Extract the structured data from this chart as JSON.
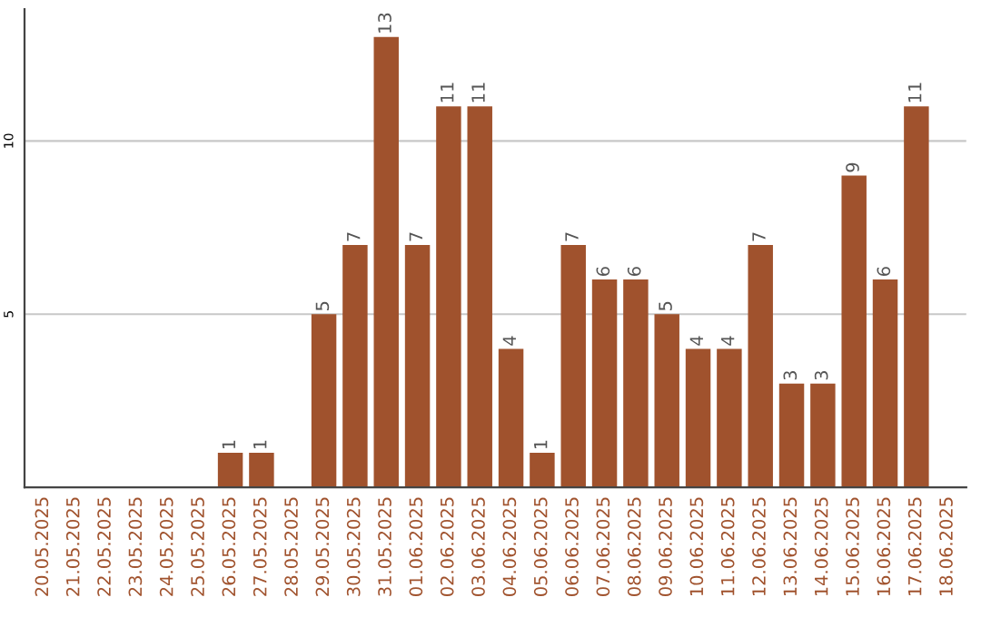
{
  "chart_data": {
    "type": "bar",
    "categories": [
      "20.05.2025",
      "21.05.2025",
      "22.05.2025",
      "23.05.2025",
      "24.05.2025",
      "25.05.2025",
      "26.05.2025",
      "27.05.2025",
      "28.05.2025",
      "29.05.2025",
      "30.05.2025",
      "31.05.2025",
      "01.06.2025",
      "02.06.2025",
      "03.06.2025",
      "04.06.2025",
      "05.06.2025",
      "06.06.2025",
      "07.06.2025",
      "08.06.2025",
      "09.06.2025",
      "10.06.2025",
      "11.06.2025",
      "12.06.2025",
      "13.06.2025",
      "14.06.2025",
      "15.06.2025",
      "16.06.2025",
      "17.06.2025",
      "18.06.2025"
    ],
    "values": [
      0,
      0,
      0,
      0,
      0,
      0,
      1,
      1,
      0,
      5,
      7,
      13,
      7,
      11,
      11,
      4,
      1,
      7,
      6,
      6,
      5,
      4,
      4,
      7,
      3,
      3,
      9,
      6,
      11,
      0
    ],
    "value_labels": [
      null,
      null,
      null,
      null,
      null,
      null,
      "1",
      "1",
      null,
      "5",
      "7",
      "13",
      "7",
      "11",
      "11",
      "4",
      "1",
      "7",
      "6",
      "6",
      "5",
      "4",
      "4",
      "7",
      "3",
      "3",
      "9",
      "6",
      "11",
      null
    ],
    "color": "#a0522d",
    "ylim": [
      0,
      13.8
    ],
    "yticks": [
      5,
      10
    ],
    "grid": "y"
  }
}
